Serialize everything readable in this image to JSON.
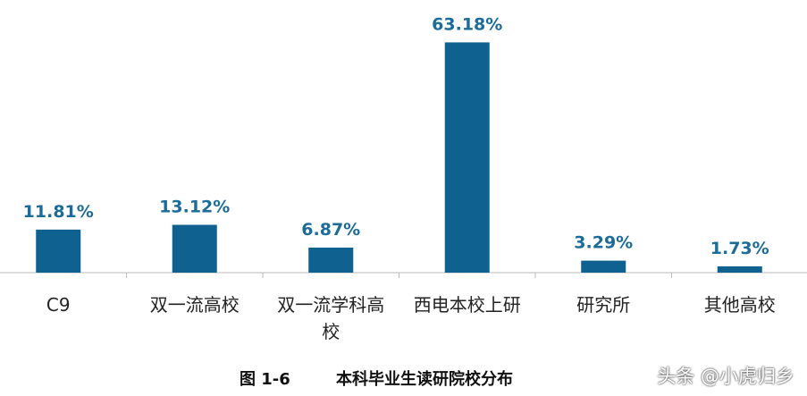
{
  "chart_data": {
    "type": "bar",
    "categories": [
      "C9",
      "双一流高校",
      "双一流学科高校",
      "西电本校上研",
      "研究所",
      "其他高校"
    ],
    "values": [
      11.81,
      13.12,
      6.87,
      63.18,
      3.29,
      1.73
    ],
    "value_labels": [
      "11.81%",
      "13.12%",
      "6.87%",
      "63.18%",
      "3.29%",
      "1.73%"
    ],
    "color": "#0f6190",
    "ylim": [
      0,
      65
    ],
    "caption_label": "图  1-6",
    "caption_title": "本科毕业生读研院校分布",
    "watermark": "头条 @小虎归乡"
  }
}
